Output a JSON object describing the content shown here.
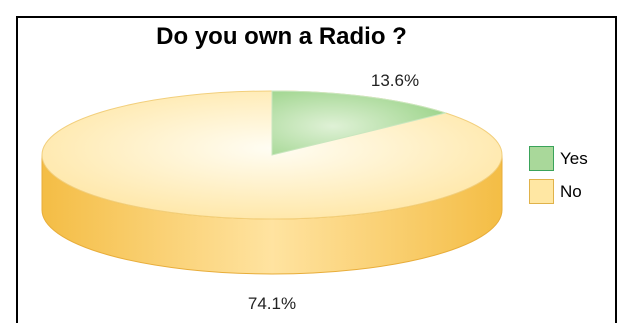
{
  "chart_data": {
    "type": "pie",
    "title": "Do you own a Radio ?",
    "slices": [
      {
        "label": "Yes",
        "display": "13.6%",
        "value": 13.6,
        "color": "#a9d89a",
        "edge": "#3aa35a"
      },
      {
        "label": "No",
        "display": "74.1%",
        "value": 74.1,
        "color": "#ffe7a3",
        "edge": "#e0b24a"
      }
    ],
    "legend_position": "right"
  }
}
